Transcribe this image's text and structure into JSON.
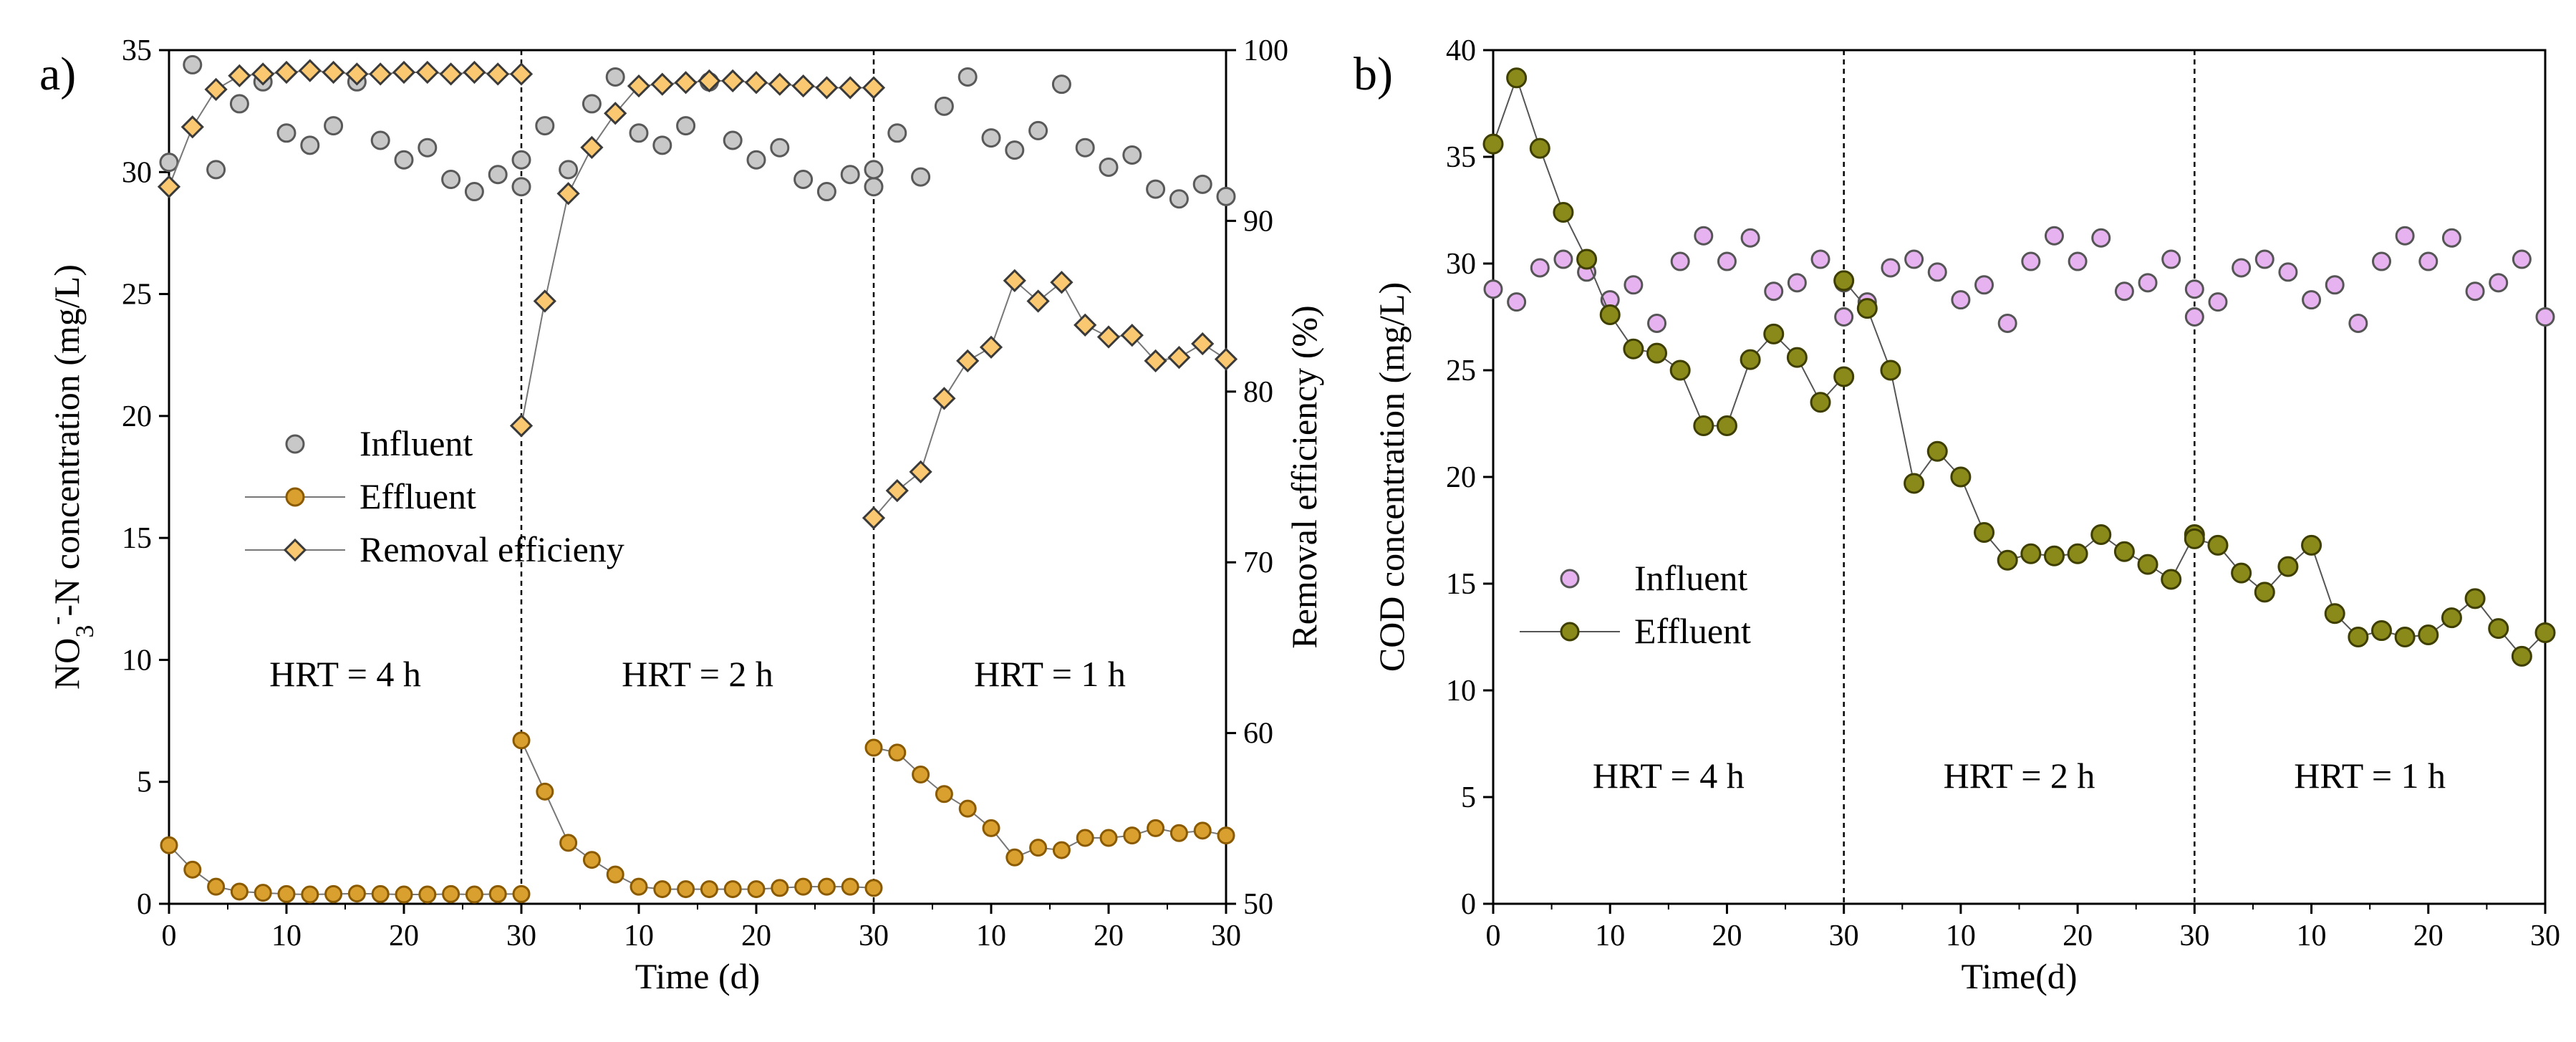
{
  "chart_data": [
    {
      "type": "scatter",
      "panel_label": "a)",
      "xlabel": "Time (d)",
      "ylabel_prefix": "NO",
      "ylabel_sub": "3",
      "ylabel_sup": "-",
      "ylabel_suffix": "-N concentration (mg/L)",
      "ylabel_right": "Removal efficiency (%)",
      "ylim": [
        0,
        35
      ],
      "yticks": [
        "0",
        "5",
        "10",
        "15",
        "20",
        "25",
        "30",
        "35"
      ],
      "ylim_right": [
        50,
        100
      ],
      "yticks_right": [
        "50",
        "60",
        "70",
        "80",
        "90",
        "100"
      ],
      "segments": [
        {
          "label": "HRT = 4 h",
          "xticks": [
            "0",
            "10",
            "20",
            "30"
          ]
        },
        {
          "label": "HRT = 2 h",
          "xticks": [
            "10",
            "20",
            "30"
          ]
        },
        {
          "label": "HRT = 1 h",
          "xticks": [
            "10",
            "20",
            "30"
          ]
        }
      ],
      "segment_xlim": [
        0,
        30
      ],
      "legend": [
        "Influent",
        "Effluent",
        "Removal efficieny"
      ],
      "colors": {
        "influent_fill": "#c8c8c8",
        "influent_stroke": "#595959",
        "effluent_fill": "#d9a030",
        "effluent_stroke": "#8a5a00",
        "removal_fill": "#f9c870",
        "removal_stroke": "#3a3a3a",
        "line": "#777777"
      },
      "series": [
        {
          "name": "Influent",
          "axis": "left",
          "segments": [
            {
              "x": [
                0,
                2,
                4,
                6,
                8,
                10,
                12,
                14,
                16,
                18,
                20,
                22,
                24,
                26,
                28,
                30
              ],
              "y": [
                30.4,
                34.4,
                30.1,
                32.8,
                33.7,
                31.6,
                31.1,
                31.9,
                33.7,
                31.3,
                30.5,
                31.0,
                29.7,
                29.2,
                29.9,
                29.4
              ]
            },
            {
              "x": [
                0,
                2,
                4,
                6,
                8,
                10,
                12,
                14,
                16,
                18,
                20,
                22,
                24,
                26,
                28,
                30
              ],
              "y": [
                30.5,
                31.9,
                30.1,
                32.8,
                33.9,
                31.6,
                31.1,
                31.9,
                33.7,
                31.3,
                30.5,
                31.0,
                29.7,
                29.2,
                29.9,
                29.4
              ]
            },
            {
              "x": [
                0,
                2,
                4,
                6,
                8,
                10,
                12,
                14,
                16,
                18,
                20,
                22,
                24,
                26,
                28,
                30
              ],
              "y": [
                30.1,
                31.6,
                29.8,
                32.7,
                33.9,
                31.4,
                30.9,
                31.7,
                33.6,
                31.0,
                30.2,
                30.7,
                29.3,
                28.9,
                29.5,
                29.0
              ]
            }
          ]
        },
        {
          "name": "Effluent",
          "axis": "left",
          "segments": [
            {
              "x": [
                0,
                2,
                4,
                6,
                8,
                10,
                12,
                14,
                16,
                18,
                20,
                22,
                24,
                26,
                28,
                30
              ],
              "y": [
                2.4,
                1.4,
                0.7,
                0.5,
                0.45,
                0.4,
                0.38,
                0.4,
                0.42,
                0.4,
                0.38,
                0.38,
                0.4,
                0.38,
                0.4,
                0.4
              ]
            },
            {
              "x": [
                0,
                2,
                4,
                6,
                8,
                10,
                12,
                14,
                16,
                18,
                20,
                22,
                24,
                26,
                28,
                30
              ],
              "y": [
                6.7,
                4.6,
                2.5,
                1.8,
                1.2,
                0.7,
                0.6,
                0.6,
                0.6,
                0.6,
                0.6,
                0.65,
                0.7,
                0.7,
                0.7,
                0.65
              ]
            },
            {
              "x": [
                0,
                2,
                4,
                6,
                8,
                10,
                12,
                14,
                16,
                18,
                20,
                22,
                24,
                26,
                28,
                30
              ],
              "y": [
                6.4,
                6.2,
                5.3,
                4.5,
                3.9,
                3.1,
                1.9,
                2.3,
                2.2,
                2.7,
                2.7,
                2.8,
                3.1,
                2.9,
                3.0,
                2.8
              ]
            }
          ]
        },
        {
          "name": "Removal efficieny",
          "axis": "right",
          "segments": [
            {
              "x": [
                0,
                2,
                4,
                6,
                8,
                10,
                12,
                14,
                16,
                18,
                20,
                22,
                24,
                26,
                28,
                30
              ],
              "y": [
                92,
                95.5,
                97.7,
                98.5,
                98.6,
                98.7,
                98.8,
                98.7,
                98.6,
                98.6,
                98.7,
                98.7,
                98.6,
                98.7,
                98.6,
                98.6
              ]
            },
            {
              "x": [
                0,
                2,
                4,
                6,
                8,
                10,
                12,
                14,
                16,
                18,
                20,
                22,
                24,
                26,
                28,
                30
              ],
              "y": [
                78,
                85.3,
                91.6,
                94.3,
                96.3,
                97.9,
                98.0,
                98.1,
                98.2,
                98.2,
                98.1,
                98.0,
                97.9,
                97.8,
                97.8,
                97.8
              ]
            },
            {
              "x": [
                0,
                2,
                4,
                6,
                8,
                10,
                12,
                14,
                16,
                18,
                20,
                22,
                24,
                26,
                28,
                30
              ],
              "y": [
                72.6,
                74.2,
                75.3,
                79.6,
                81.8,
                82.6,
                86.5,
                85.3,
                86.4,
                83.9,
                83.2,
                83.3,
                81.8,
                82.0,
                82.8,
                81.9
              ]
            }
          ]
        }
      ]
    },
    {
      "type": "scatter",
      "panel_label": "b)",
      "xlabel": "Time(d)",
      "ylabel": "COD concentration (mg/L)",
      "ylim": [
        0,
        40
      ],
      "yticks": [
        "0",
        "5",
        "10",
        "15",
        "20",
        "25",
        "30",
        "35",
        "40"
      ],
      "segments": [
        {
          "label": "HRT = 4 h",
          "xticks": [
            "0",
            "10",
            "20",
            "30"
          ]
        },
        {
          "label": "HRT = 2 h",
          "xticks": [
            "10",
            "20",
            "30"
          ]
        },
        {
          "label": "HRT = 1 h",
          "xticks": [
            "10",
            "20",
            "30"
          ]
        }
      ],
      "segment_xlim": [
        0,
        30
      ],
      "legend": [
        "Influent",
        "Effluent"
      ],
      "colors": {
        "influent_fill": "#e6b3f0",
        "influent_stroke": "#555555",
        "effluent_fill": "#8a8a1a",
        "effluent_stroke": "#3e3e00",
        "line": "#555555"
      },
      "series": [
        {
          "name": "Influent",
          "segments": [
            {
              "x": [
                0,
                2,
                4,
                6,
                8,
                10,
                12,
                14,
                16,
                18,
                20,
                22,
                24,
                26,
                28,
                30
              ],
              "y": [
                28.8,
                28.2,
                29.8,
                30.2,
                29.6,
                28.3,
                29.0,
                27.2,
                30.1,
                31.3,
                30.1,
                31.2,
                28.7,
                29.1,
                30.2,
                27.5
              ]
            },
            {
              "x": [
                0,
                2,
                4,
                6,
                8,
                10,
                12,
                14,
                16,
                18,
                20,
                22,
                24,
                26,
                28,
                30
              ],
              "y": [
                29.1,
                28.2,
                29.8,
                30.2,
                29.6,
                28.3,
                29.0,
                27.2,
                30.1,
                31.3,
                30.1,
                31.2,
                28.7,
                29.1,
                30.2,
                27.5
              ]
            },
            {
              "x": [
                0,
                2,
                4,
                6,
                8,
                10,
                12,
                14,
                16,
                18,
                20,
                22,
                24,
                26,
                28,
                30
              ],
              "y": [
                28.8,
                28.2,
                29.8,
                30.2,
                29.6,
                28.3,
                29.0,
                27.2,
                30.1,
                31.3,
                30.1,
                31.2,
                28.7,
                29.1,
                30.2,
                27.5
              ]
            }
          ]
        },
        {
          "name": "Effluent",
          "segments": [
            {
              "x": [
                0,
                2,
                4,
                6,
                8,
                10,
                12,
                14,
                16,
                18,
                20,
                22,
                24,
                26,
                28,
                30
              ],
              "y": [
                35.6,
                38.7,
                35.4,
                32.4,
                30.2,
                27.6,
                26.0,
                25.8,
                25.0,
                22.4,
                22.4,
                25.5,
                26.7,
                25.6,
                23.5,
                24.7
              ]
            },
            {
              "x": [
                0,
                2,
                4,
                6,
                8,
                10,
                12,
                14,
                16,
                18,
                20,
                22,
                24,
                26,
                28,
                30
              ],
              "y": [
                29.2,
                27.9,
                25.0,
                19.7,
                21.2,
                20.0,
                17.4,
                16.1,
                16.4,
                16.3,
                16.4,
                17.3,
                16.5,
                15.9,
                15.2,
                17.3
              ]
            },
            {
              "x": [
                0,
                2,
                4,
                6,
                8,
                10,
                12,
                14,
                16,
                18,
                20,
                22,
                24,
                26,
                28,
                30
              ],
              "y": [
                17.1,
                16.8,
                15.5,
                14.6,
                15.8,
                16.8,
                13.6,
                12.5,
                12.8,
                12.5,
                12.6,
                13.4,
                14.3,
                12.9,
                11.6,
                12.7
              ]
            }
          ]
        }
      ]
    }
  ]
}
